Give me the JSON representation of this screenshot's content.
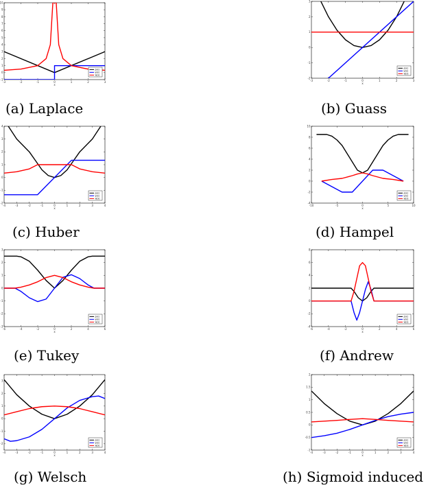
{
  "chart_data": [
    {
      "type": "line",
      "caption": "(a) Laplace",
      "xlim": [
        -3,
        3
      ],
      "ylim": [
        -1,
        10
      ],
      "xticks": [
        "-3",
        "-2",
        "-1",
        "0",
        "1",
        "2",
        "3"
      ],
      "yticks": [
        "-1",
        "0",
        "1",
        "2",
        "3",
        "4",
        "5",
        "6",
        "7",
        "8",
        "9",
        "10"
      ],
      "xlabel": "x",
      "legend": [
        "ρ(x)",
        "ψ(x)",
        "w(x)"
      ],
      "series": [
        {
          "name": "ρ(x)",
          "color": "#000000",
          "x": [
            -3,
            0,
            3
          ],
          "y": [
            3,
            0,
            3
          ]
        },
        {
          "name": "ψ(x)",
          "color": "#0000ff",
          "x": [
            -3,
            0,
            0,
            3
          ],
          "y": [
            -1,
            -1,
            1,
            1
          ]
        },
        {
          "name": "w(x)",
          "color": "#ff0000",
          "x": [
            -3,
            -2,
            -1,
            -0.5,
            -0.25,
            -0.1,
            0.1,
            0.25,
            0.5,
            1,
            2,
            3
          ],
          "y": [
            0.33,
            0.5,
            1,
            2,
            4,
            10,
            10,
            4,
            2,
            1,
            0.5,
            0.33
          ]
        }
      ]
    },
    {
      "type": "line",
      "caption": "(b) Guass",
      "xlim": [
        -3,
        3
      ],
      "ylim": [
        -2,
        3
      ],
      "xticks": [
        "-3",
        "-2",
        "-1",
        "0",
        "1",
        "2",
        "3"
      ],
      "yticks": [
        "-2",
        "-1",
        "0",
        "1",
        "2",
        "3"
      ],
      "xlabel": "x",
      "legend": [
        "ρ(x)",
        "ψ(x)",
        "w(x)"
      ],
      "series": [
        {
          "name": "ρ(x)",
          "color": "#000000",
          "x": [
            -3,
            -2.5,
            -2,
            -1.5,
            -1,
            -0.5,
            0,
            0.5,
            1,
            1.5,
            2,
            2.5,
            3
          ],
          "y": [
            4.5,
            3.125,
            2,
            1.125,
            0.5,
            0.125,
            0,
            0.125,
            0.5,
            1.125,
            2,
            3.125,
            4.5
          ]
        },
        {
          "name": "ψ(x)",
          "color": "#0000ff",
          "x": [
            -3,
            3
          ],
          "y": [
            -3,
            3
          ]
        },
        {
          "name": "w(x)",
          "color": "#ff0000",
          "x": [
            -3,
            3
          ],
          "y": [
            1,
            1
          ]
        }
      ]
    },
    {
      "type": "line",
      "caption": "(c) Huber",
      "xlim": [
        -4,
        4
      ],
      "ylim": [
        -2,
        4
      ],
      "xticks": [
        "-4",
        "-3",
        "-2",
        "-1",
        "0",
        "1",
        "2",
        "3",
        "4"
      ],
      "yticks": [
        "-2",
        "-1",
        "0",
        "1",
        "2",
        "3",
        "4"
      ],
      "xlabel": "x",
      "legend": [
        "ρ(x)",
        "ψ(x)",
        "w(x)"
      ],
      "series": [
        {
          "name": "ρ(x)",
          "color": "#000000",
          "x": [
            -4,
            -3,
            -2,
            -1.5,
            -1,
            -0.5,
            0,
            0.5,
            1,
            1.5,
            2,
            3,
            4
          ],
          "y": [
            4.5,
            3,
            2,
            1.3,
            0.6,
            0.15,
            0,
            0.15,
            0.6,
            1.3,
            2,
            3,
            4.5
          ]
        },
        {
          "name": "ψ(x)",
          "color": "#0000ff",
          "x": [
            -4,
            -1.345,
            1.345,
            4
          ],
          "y": [
            -1.345,
            -1.345,
            1.345,
            1.345
          ]
        },
        {
          "name": "w(x)",
          "color": "#ff0000",
          "x": [
            -4,
            -3,
            -2,
            -1.345,
            1.345,
            2,
            3,
            4
          ],
          "y": [
            0.34,
            0.45,
            0.67,
            1,
            1,
            0.67,
            0.45,
            0.34
          ]
        }
      ]
    },
    {
      "type": "line",
      "caption": "(d) Hampel",
      "xlim": [
        -10,
        10
      ],
      "ylim": [
        -4,
        10
      ],
      "xticks": [
        "-10",
        "-5",
        "0",
        "5",
        "10"
      ],
      "yticks": [
        "-4",
        "-2",
        "0",
        "2",
        "4",
        "6",
        "8",
        "10"
      ],
      "xlabel": "x",
      "legend": [
        "ρ(x)",
        "ψ(x)",
        "w(x)"
      ],
      "series": [
        {
          "name": "ρ(x)",
          "color": "#000000",
          "x": [
            -9,
            -8,
            -7,
            -6,
            -5,
            -4,
            -3,
            -2,
            -1,
            0,
            1,
            2,
            3,
            4,
            5,
            6,
            7,
            8,
            9
          ],
          "y": [
            8.5,
            8.5,
            8.5,
            8.2,
            7.5,
            6.5,
            5,
            3.5,
            2,
            1.5,
            2,
            3.5,
            5,
            6.5,
            7.5,
            8.2,
            8.5,
            8.5,
            8.5
          ]
        },
        {
          "name": "ψ(x)",
          "color": "#0000ff",
          "x": [
            -8,
            -4,
            -2,
            2,
            4,
            8
          ],
          "y": [
            0,
            -2,
            -2,
            2,
            2,
            0
          ]
        },
        {
          "name": "w(x)",
          "color": "#ff0000",
          "x": [
            -8,
            -6,
            -4,
            -2,
            -1,
            0,
            1,
            2,
            4,
            6,
            8
          ],
          "y": [
            0,
            0.3,
            0.5,
            1,
            1.3,
            1.5,
            1.3,
            1,
            0.5,
            0.3,
            0
          ]
        }
      ]
    },
    {
      "type": "line",
      "caption": "(e) Tukey",
      "xlim": [
        -6,
        6
      ],
      "ylim": [
        -3,
        3
      ],
      "xticks": [
        "-6",
        "-4",
        "-2",
        "0",
        "2",
        "4",
        "6"
      ],
      "yticks": [
        "-3",
        "-2",
        "-1",
        "0",
        "1",
        "2",
        "3"
      ],
      "xlabel": "x",
      "legend": [
        "ρ(x)",
        "ψ(x)",
        "w(x)"
      ],
      "series": [
        {
          "name": "ρ(x)",
          "color": "#000000",
          "x": [
            -6,
            -5,
            -4.5,
            -4,
            -3,
            -2,
            -1,
            0,
            1,
            2,
            3,
            4,
            4.5,
            5,
            6
          ],
          "y": [
            2.5,
            2.5,
            2.5,
            2.45,
            2.1,
            1.4,
            0.6,
            0,
            0.6,
            1.4,
            2.1,
            2.45,
            2.5,
            2.5,
            2.5
          ]
        },
        {
          "name": "ψ(x)",
          "color": "#0000ff",
          "x": [
            -6,
            -4.7,
            -4,
            -3,
            -2,
            -1,
            0,
            1,
            2,
            3,
            4,
            4.7,
            6
          ],
          "y": [
            0,
            0,
            -0.25,
            -0.75,
            -1.05,
            -0.85,
            0,
            0.85,
            1.05,
            0.75,
            0.25,
            0,
            0
          ]
        },
        {
          "name": "w(x)",
          "color": "#ff0000",
          "x": [
            -6,
            -4.7,
            -4,
            -3,
            -2,
            -1,
            0,
            1,
            2,
            3,
            4,
            4.7,
            6
          ],
          "y": [
            0,
            0,
            0.08,
            0.25,
            0.5,
            0.83,
            1,
            0.83,
            0.5,
            0.25,
            0.08,
            0,
            0
          ]
        }
      ]
    },
    {
      "type": "line",
      "caption": "(f) Andrew",
      "xlim": [
        -6,
        6
      ],
      "ylim": [
        -4,
        8
      ],
      "xticks": [
        "-6",
        "-4",
        "-2",
        "0",
        "2",
        "4",
        "6"
      ],
      "yticks": [
        "-4",
        "-2",
        "0",
        "2",
        "4",
        "6",
        "8"
      ],
      "xlabel": "x",
      "legend": [
        "ρ(x)",
        "ψ(x)",
        "w(x)"
      ],
      "series": [
        {
          "name": "ρ(x)",
          "color": "#000000",
          "x": [
            -6,
            -1.34,
            -1,
            -0.5,
            0,
            0.5,
            1,
            1.34,
            6
          ],
          "y": [
            2,
            2,
            1.5,
            0.5,
            0,
            0.5,
            1.5,
            2,
            2
          ]
        },
        {
          "name": "ψ(x)",
          "color": "#0000ff",
          "x": [
            -6,
            -1.34,
            -1,
            -0.67,
            -0.34,
            0,
            0.34,
            0.67,
            1,
            1.34,
            6
          ],
          "y": [
            0,
            0,
            -1.8,
            -3,
            -1.8,
            0,
            1.8,
            3,
            1.8,
            0,
            0
          ]
        },
        {
          "name": "w(x)",
          "color": "#ff0000",
          "x": [
            -6,
            -1.34,
            -1,
            -0.67,
            -0.34,
            0,
            0.34,
            0.67,
            1,
            1.34,
            6
          ],
          "y": [
            0,
            0,
            1.5,
            3.5,
            5.5,
            6,
            5.5,
            3.5,
            1.5,
            0,
            0
          ]
        }
      ]
    },
    {
      "type": "line",
      "caption": "(g) Welsch",
      "xlim": [
        -4,
        4
      ],
      "ylim": [
        -2.5,
        3.5
      ],
      "xticks": [
        "-4",
        "-3",
        "-2",
        "-1",
        "0",
        "1",
        "2",
        "3",
        "4"
      ],
      "yticks": [
        "-2",
        "-1",
        "0",
        "1",
        "2",
        "3"
      ],
      "xlabel": "x",
      "legend": [
        "ρ(x)",
        "ψ(x)",
        "w(x)"
      ],
      "series": [
        {
          "name": "ρ(x)",
          "color": "#000000",
          "x": [
            -4,
            -3,
            -2,
            -1,
            0,
            1,
            2,
            3,
            4
          ],
          "y": [
            3.1,
            1.9,
            1.0,
            0.35,
            0,
            0.35,
            1.0,
            1.9,
            3.1
          ]
        },
        {
          "name": "ψ(x)",
          "color": "#0000ff",
          "x": [
            -4,
            -3.5,
            -3,
            -2,
            -1,
            0,
            1,
            2,
            3,
            3.5,
            4
          ],
          "y": [
            -1.6,
            -1.8,
            -1.75,
            -1.45,
            -0.85,
            0,
            0.85,
            1.45,
            1.75,
            1.8,
            1.6
          ]
        },
        {
          "name": "w(x)",
          "color": "#ff0000",
          "x": [
            -4,
            -3,
            -2,
            -1,
            0,
            1,
            2,
            3,
            4
          ],
          "y": [
            0.3,
            0.55,
            0.8,
            0.95,
            1,
            0.95,
            0.8,
            0.55,
            0.3
          ]
        }
      ]
    },
    {
      "type": "line",
      "caption": "(h) Sigmoid induced",
      "xlim": [
        -4,
        4
      ],
      "ylim": [
        -1,
        2
      ],
      "xticks": [
        "-4",
        "-3",
        "-2",
        "-1",
        "0",
        "1",
        "2",
        "3",
        "4"
      ],
      "yticks": [
        "-1",
        "-0.5",
        "0",
        "0.5",
        "1",
        "1.5",
        "2"
      ],
      "xlabel": "x",
      "legend": [
        "ρ(x)",
        "ψ(x)",
        "w(x)"
      ],
      "series": [
        {
          "name": "ρ(x)",
          "color": "#000000",
          "x": [
            -4,
            -3,
            -2,
            -1,
            0,
            1,
            2,
            3,
            4
          ],
          "y": [
            1.35,
            0.85,
            0.45,
            0.15,
            0,
            0.15,
            0.45,
            0.85,
            1.35
          ]
        },
        {
          "name": "ψ(x)",
          "color": "#0000ff",
          "x": [
            -4,
            -3,
            -2,
            -1,
            0,
            1,
            2,
            3,
            4
          ],
          "y": [
            -0.5,
            -0.43,
            -0.33,
            -0.18,
            0,
            0.18,
            0.33,
            0.43,
            0.5
          ]
        },
        {
          "name": "w(x)",
          "color": "#ff0000",
          "x": [
            -4,
            -3,
            -2,
            -1,
            0,
            1,
            2,
            3,
            4
          ],
          "y": [
            0.12,
            0.15,
            0.18,
            0.22,
            0.25,
            0.22,
            0.18,
            0.15,
            0.12
          ]
        }
      ]
    }
  ]
}
